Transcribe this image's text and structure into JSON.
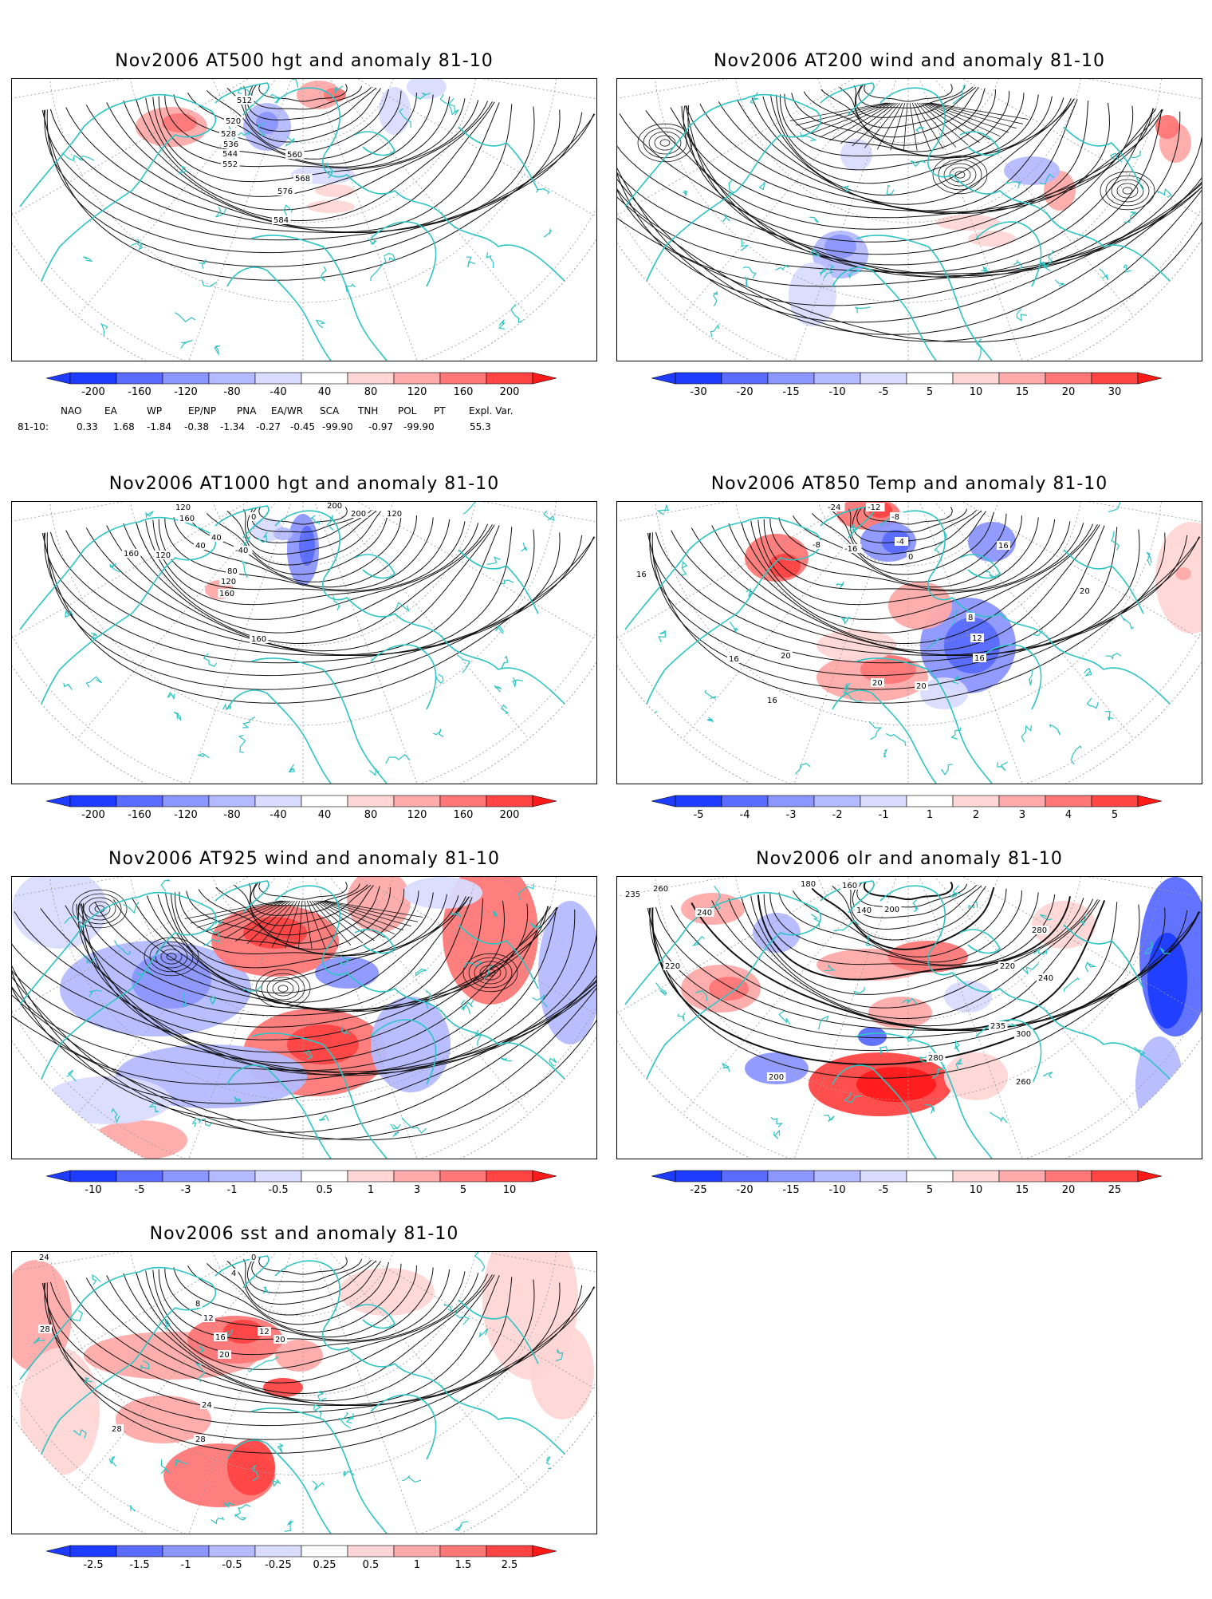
{
  "panels": [
    {
      "id": "p500",
      "title": "Nov2006 AT500 hgt and anomaly 81-10",
      "kind": "hgt500",
      "colorbar": [
        "-200",
        "-160",
        "-120",
        "-80",
        "-40",
        "40",
        "80",
        "120",
        "160",
        "200"
      ],
      "contour_labels": [
        "512",
        "520",
        "528",
        "536",
        "544",
        "552",
        "560",
        "568",
        "576",
        "584"
      ]
    },
    {
      "id": "p200",
      "title": "Nov2006 AT200 wind and anomaly 81-10",
      "kind": "wind200",
      "colorbar": [
        "-30",
        "-20",
        "-15",
        "-10",
        "-5",
        "5",
        "10",
        "15",
        "20",
        "30"
      ],
      "contour_labels": []
    },
    {
      "id": "p1000",
      "title": "Nov2006 AT1000 hgt and anomaly 81-10",
      "kind": "hgt1000",
      "colorbar": [
        "-200",
        "-160",
        "-120",
        "-80",
        "-40",
        "40",
        "80",
        "120",
        "160",
        "200"
      ],
      "contour_labels": [
        "120",
        "160",
        "40",
        "0",
        "-40",
        "40",
        "80",
        "120",
        "160",
        "200",
        "200",
        "120",
        "160",
        "120",
        "160"
      ]
    },
    {
      "id": "p850",
      "title": "Nov2006 AT850 Temp and anomaly 81-10",
      "kind": "temp850",
      "colorbar": [
        "-5",
        "-4",
        "-3",
        "-2",
        "-1",
        "1",
        "2",
        "3",
        "4",
        "5"
      ],
      "contour_labels": [
        "-24",
        "-12",
        "-8",
        "-8",
        "-4",
        "-16",
        "0",
        "16",
        "16",
        "8",
        "12",
        "16",
        "20",
        "16",
        "20",
        "20",
        "20",
        "16"
      ]
    },
    {
      "id": "p925",
      "title": "Nov2006 AT925 wind and anomaly 81-10",
      "kind": "wind925",
      "colorbar": [
        "-10",
        "-5",
        "-3",
        "-1",
        "-0.5",
        "0.5",
        "1",
        "3",
        "5",
        "10"
      ],
      "contour_labels": []
    },
    {
      "id": "polr",
      "title": "Nov2006 olr and anomaly 81-10",
      "kind": "olr",
      "colorbar": [
        "-25",
        "-20",
        "-15",
        "-10",
        "-5",
        "5",
        "10",
        "15",
        "20",
        "25"
      ],
      "contour_labels": [
        "235",
        "260",
        "240",
        "220",
        "180",
        "160",
        "200",
        "140",
        "280",
        "300",
        "235",
        "220",
        "240",
        "260",
        "280",
        "200"
      ]
    },
    {
      "id": "psst",
      "title": "Nov2006 sst and anomaly 81-10",
      "kind": "sst",
      "colorbar": [
        "-2.5",
        "-1.5",
        "-1",
        "-0.5",
        "-0.25",
        "0.25",
        "0.5",
        "1",
        "1.5",
        "2.5"
      ],
      "contour_labels": [
        "24",
        "28",
        "0",
        "4",
        "8",
        "12",
        "16",
        "20",
        "24",
        "28",
        "28",
        "20",
        "12"
      ]
    }
  ],
  "teleconnection": {
    "headers": [
      "NAO",
      "EA",
      "WP",
      "EP/NP",
      "PNA",
      "EA/WR",
      "SCA",
      "TNH",
      "POL",
      "PT",
      "Expl. Var."
    ],
    "row_label": "81-10:",
    "values": [
      "0.33",
      "1.68",
      "-1.84",
      "-0.38",
      "-1.34",
      "-0.27",
      "-0.45",
      "-99.90",
      "-0.97",
      "-99.90",
      "55.3"
    ]
  },
  "colors": {
    "coast": "#2ec4c4",
    "blues": [
      "#1e3cff",
      "#5a6bff",
      "#8c96ff",
      "#b4baff",
      "#dadcff"
    ],
    "reds": [
      "#ffd6d6",
      "#ffaaaa",
      "#ff7777",
      "#ff4444",
      "#ff1a1a"
    ]
  }
}
